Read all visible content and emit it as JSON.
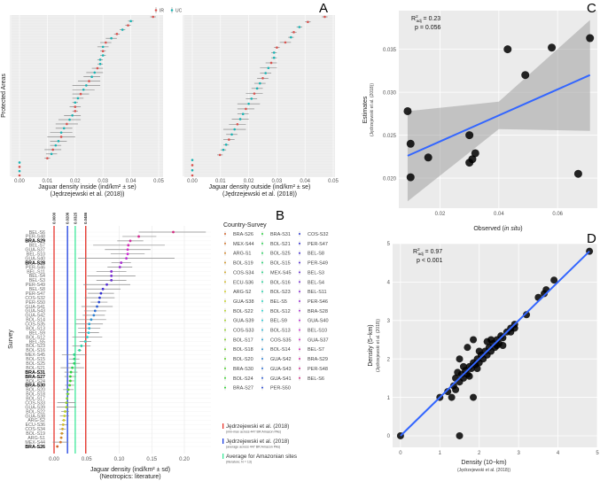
{
  "panel_labels": {
    "a": "A",
    "b": "B",
    "c": "C",
    "d": "D"
  },
  "chart_data": [
    {
      "id": "A",
      "type": "scatter",
      "ylabel": "Protected Areas",
      "legend": [
        {
          "name": "IR",
          "color": "#d9534f"
        },
        {
          "name": "UC",
          "color": "#1bb3b3"
        }
      ],
      "legend_placement": "top-center",
      "xlim": [
        0,
        0.05
      ],
      "xticks": [
        "0.00",
        "0.01",
        "0.02",
        "0.03",
        "0.04",
        "0.05"
      ],
      "panels": [
        {
          "xlabel": "Jaguar density inside (ind/km² ± se)",
          "xlabel_sub": "(Jędrzejewski et al. (2018))",
          "points": [
            [
              0,
              0,
              "IR"
            ],
            [
              0,
              0,
              "UC"
            ],
            [
              0,
              0,
              "IR"
            ],
            [
              0,
              0,
              "UC"
            ],
            [
              0.01,
              0.001,
              "IR"
            ],
            [
              0.0115,
              0.002,
              "UC"
            ],
            [
              0.012,
              0.003,
              "IR"
            ],
            [
              0.013,
              0.002,
              "UC"
            ],
            [
              0.014,
              0.003,
              "UC"
            ],
            [
              0.015,
              0.005,
              "IR"
            ],
            [
              0.015,
              0.004,
              "UC"
            ],
            [
              0.016,
              0.003,
              "UC"
            ],
            [
              0.017,
              0.004,
              "IR"
            ],
            [
              0.018,
              0.004,
              "UC"
            ],
            [
              0.019,
              0.003,
              "UC"
            ],
            [
              0.02,
              0.001,
              "IR"
            ],
            [
              0.02,
              0.002,
              "IR"
            ],
            [
              0.02,
              0.001,
              "UC"
            ],
            [
              0.021,
              0.002,
              "UC"
            ],
            [
              0.022,
              0.003,
              "IR"
            ],
            [
              0.023,
              0.004,
              "UC"
            ],
            [
              0.024,
              0.005,
              "UC"
            ],
            [
              0.025,
              0.004,
              "IR"
            ],
            [
              0.026,
              0.003,
              "UC"
            ],
            [
              0.027,
              0.003,
              "UC"
            ],
            [
              0.028,
              0.002,
              "IR"
            ],
            [
              0.029,
              0.001,
              "UC"
            ],
            [
              0.029,
              0.001,
              "UC"
            ],
            [
              0.03,
              0.001,
              "UC"
            ],
            [
              0.03,
              0.001,
              "IR"
            ],
            [
              0.03,
              0.002,
              "UC"
            ],
            [
              0.031,
              0.002,
              "IR"
            ],
            [
              0.033,
              0.002,
              "UC"
            ],
            [
              0.035,
              0.001,
              "IR"
            ],
            [
              0.037,
              0.001,
              "UC"
            ],
            [
              0.039,
              0.001,
              "IR"
            ],
            [
              0.04,
              0.001,
              "UC"
            ],
            [
              0.048,
              0.001,
              "IR"
            ]
          ]
        },
        {
          "xlabel": "Jaguar density outside (ind/km² ± se)",
          "xlabel_sub": "(Jędrzejewski et al. (2018))",
          "points": [
            [
              0,
              0,
              "IR"
            ],
            [
              0,
              0,
              "UC"
            ],
            [
              0,
              0,
              "IR"
            ],
            [
              0,
              0,
              "UC"
            ],
            [
              0.0098,
              0.001,
              "IR"
            ],
            [
              0.011,
              0.001,
              "UC"
            ],
            [
              0.012,
              0.001,
              "UC"
            ],
            [
              0.013,
              0.002,
              "IR"
            ],
            [
              0.014,
              0.002,
              "UC"
            ],
            [
              0.015,
              0.004,
              "UC"
            ],
            [
              0.016,
              0.003,
              "IR"
            ],
            [
              0.017,
              0.003,
              "UC"
            ],
            [
              0.018,
              0.002,
              "UC"
            ],
            [
              0.019,
              0.003,
              "IR"
            ],
            [
              0.02,
              0.004,
              "UC"
            ],
            [
              0.021,
              0.002,
              "UC"
            ],
            [
              0.022,
              0.003,
              "IR"
            ],
            [
              0.023,
              0.002,
              "UC"
            ],
            [
              0.024,
              0.002,
              "UC"
            ],
            [
              0.025,
              0.002,
              "IR"
            ],
            [
              0.026,
              0.002,
              "UC"
            ],
            [
              0.027,
              0.003,
              "UC"
            ],
            [
              0.028,
              0.002,
              "IR"
            ],
            [
              0.029,
              0.001,
              "UC"
            ],
            [
              0.029,
              0.001,
              "UC"
            ],
            [
              0.03,
              0.001,
              "IR"
            ],
            [
              0.033,
              0.002,
              "IR"
            ],
            [
              0.035,
              0.001,
              "UC"
            ],
            [
              0.036,
              0.001,
              "IR"
            ],
            [
              0.038,
              0.001,
              "UC"
            ],
            [
              0.041,
              0.001,
              "IR"
            ],
            [
              0.047,
              0.001,
              "IR"
            ]
          ]
        }
      ]
    },
    {
      "id": "B",
      "type": "scatter",
      "ylabel": "Survey",
      "xlabel": "Jaguar density (ind/km² ± sd)",
      "xlabel_sub": "(Neotropics: literature)",
      "xlim": [
        -0.01,
        0.235
      ],
      "xticks": [
        "0.00",
        "0.05",
        "0.10",
        "0.15",
        "0.20"
      ],
      "bold_surveys": [
        "BRA-S29",
        "BRA-S28",
        "BRA-S31",
        "BRA-S27",
        "BRA-S30",
        "BRA-S26"
      ],
      "surveys": [
        [
          "BEL-S6",
          0.183,
          0.13,
          0.233
        ],
        [
          "PER-S48",
          0.13,
          0.105,
          0.157
        ],
        [
          "BRA-S29",
          0.117,
          0.097,
          0.137
        ],
        [
          "BEL-S7",
          0.114,
          0.06,
          0.17
        ],
        [
          "GUA-S37",
          0.113,
          0.078,
          0.148
        ],
        [
          "BEL-S10",
          0.113,
          0.087,
          0.139
        ],
        [
          "GUA-S40",
          0.111,
          0.037,
          0.185
        ],
        [
          "BRA-S28",
          0.103,
          0.088,
          0.118
        ],
        [
          "PER-S46",
          0.101,
          0.082,
          0.12
        ],
        [
          "BEL-S11",
          0.088,
          0.065,
          0.111
        ],
        [
          "BEL-S4",
          0.088,
          0.051,
          0.125
        ],
        [
          "BEL-S3",
          0.088,
          0.065,
          0.111
        ],
        [
          "PER-S49",
          0.081,
          0.045,
          0.117
        ],
        [
          "BEL-S8",
          0.075,
          0.048,
          0.102
        ],
        [
          "PER-S47",
          0.072,
          0.052,
          0.092
        ],
        [
          "COS-S32",
          0.07,
          0.047,
          0.093
        ],
        [
          "PER-S50",
          0.069,
          0.056,
          0.082
        ],
        [
          "GUA-S41",
          0.066,
          0.042,
          0.09
        ],
        [
          "GUA-S43",
          0.063,
          0.046,
          0.08
        ],
        [
          "GUA-S42",
          0.061,
          0.044,
          0.078
        ],
        [
          "BOL-S14",
          0.057,
          0.034,
          0.08
        ],
        [
          "COS-S35",
          0.054,
          0.033,
          0.075
        ],
        [
          "BOL-S13",
          0.054,
          0.037,
          0.071
        ],
        [
          "BEL-S9",
          0.053,
          0.037,
          0.069
        ],
        [
          "BOL-S12",
          0.051,
          0.028,
          0.074
        ],
        [
          "BEL-S5",
          0.048,
          0.039,
          0.057
        ],
        [
          "BOL-S23",
          0.042,
          0.028,
          0.056
        ],
        [
          "BOL-S16",
          0.039,
          0.036,
          0.042
        ],
        [
          "MEX-S45",
          0.031,
          0.012,
          0.05
        ],
        [
          "BOL-S15",
          0.031,
          0.023,
          0.039
        ],
        [
          "BOL-S25",
          0.031,
          0.022,
          0.04
        ],
        [
          "BOL-S21",
          0.028,
          0.01,
          0.046
        ],
        [
          "BRA-S31",
          0.026,
          0.016,
          0.036
        ],
        [
          "BRA-S27",
          0.025,
          0.016,
          0.034
        ],
        [
          "BOL-S24",
          0.025,
          0.019,
          0.031
        ],
        [
          "BRA-S30",
          0.024,
          0.017,
          0.031
        ],
        [
          "BOL-S20",
          0.022,
          0.014,
          0.03
        ],
        [
          "BOL-S18",
          0.021,
          0.018,
          0.024
        ],
        [
          "BOL-S17",
          0.02,
          0.019,
          0.021
        ],
        [
          "COS-S33",
          0.019,
          0.005,
          0.033
        ],
        [
          "GUA-S39",
          0.019,
          0.004,
          0.034
        ],
        [
          "BOL-S22",
          0.017,
          0.011,
          0.023
        ],
        [
          "GUA-S38",
          0.016,
          0.009,
          0.023
        ],
        [
          "ARG-S2",
          0.015,
          0.012,
          0.018
        ],
        [
          "ECU-S36",
          0.014,
          0.008,
          0.02
        ],
        [
          "COS-S34",
          0.013,
          0.008,
          0.018
        ],
        [
          "BOL-S19",
          0.012,
          0.009,
          0.015
        ],
        [
          "ARG-S1",
          0.011,
          0.009,
          0.013
        ],
        [
          "MEX-S44",
          0.01,
          -0.002,
          0.022
        ],
        [
          "BRA-S26",
          0.005,
          0.004,
          0.006
        ]
      ],
      "vlines": [
        {
          "value": 0.0,
          "label": "0.0000",
          "color": "#e8342c"
        },
        {
          "value": 0.0206,
          "label": "0.0206",
          "color": "#1a3ee0"
        },
        {
          "value": 0.0325,
          "label": "0.0325",
          "color": "#3ee89a"
        },
        {
          "value": 0.0486,
          "label": "0.0486",
          "color": "#e8342c"
        }
      ],
      "legend_title": "Country-Survey",
      "legend_columns": [
        [
          "BRA-S26",
          "MEX-S44",
          "ARG-S1",
          "BOL-S19",
          "COS-S34",
          "ECU-S36",
          "ARG-S2",
          "GUA-S38",
          "BOL-S22",
          "GUA-S39",
          "COS-S33",
          "BOL-S17",
          "BOL-S18",
          "BOL-S20",
          "BRA-S30",
          "BOL-S24",
          "BRA-S27"
        ],
        [
          "BRA-S31",
          "BOL-S21",
          "BOL-S25",
          "BOL-S15",
          "MEX-S45",
          "BOL-S16",
          "BOL-S23",
          "BEL-S5",
          "BOL-S12",
          "BEL-S9",
          "BOL-S13",
          "COS-S35",
          "BOL-S14",
          "GUA-S42",
          "GUA-S43",
          "GUA-S41",
          "PER-S50"
        ],
        [
          "COS-S32",
          "PER-S47",
          "BEL-S8",
          "PER-S49",
          "BEL-S3",
          "BEL-S4",
          "BEL-S11",
          "PER-S46",
          "BRA-S28",
          "GUA-S40",
          "BEL-S10",
          "GUA-S37",
          "BEL-S7",
          "BRA-S29",
          "PER-S48",
          "BEL-S6"
        ]
      ],
      "line_legend": [
        {
          "label": "Jędrzejewski et al. (2018)",
          "sub": "(min-max across 447 BR Amazon PAs)",
          "color": "#e8342c"
        },
        {
          "label": "Jędrzejewski et al. (2018)",
          "sub": "(average across 447 BR Amazon PAs)",
          "color": "#1a3ee0"
        },
        {
          "label": "Average for Amazonian sites",
          "sub": "(literature; N = 13)",
          "color": "#3ee89a"
        }
      ]
    },
    {
      "id": "C",
      "type": "scatter",
      "xlabel": "Observed (in situ)",
      "xlabel_plain": "Observed (",
      "xlabel_italic": "in situ",
      "xlabel_end": ")",
      "ylabel": "Estimates",
      "ylabel_sub": "(Jędrzejewski et al. (2018))",
      "xlim": [
        0.006,
        0.0735
      ],
      "ylim": [
        0.0165,
        0.0395
      ],
      "xticks": [
        0.02,
        0.04,
        0.06
      ],
      "xtick_labels": [
        "0.02",
        "0.04",
        "0.06"
      ],
      "yticks": [
        0.02,
        0.025,
        0.03,
        0.035
      ],
      "ytick_labels": [
        "0.020",
        "0.025",
        "0.030",
        "0.035"
      ],
      "annotation": {
        "r2": "R²adj = 0.23",
        "r2_prefix": "R",
        "r2_sup": "2",
        "r2_sub": "adj",
        "r2_val": " = 0.23",
        "p": "p = 0.056"
      },
      "points": [
        [
          0.009,
          0.0278
        ],
        [
          0.01,
          0.024
        ],
        [
          0.01,
          0.0201
        ],
        [
          0.016,
          0.0224
        ],
        [
          0.03,
          0.0218
        ],
        [
          0.03,
          0.025
        ],
        [
          0.031,
          0.0222
        ],
        [
          0.032,
          0.0229
        ],
        [
          0.043,
          0.035
        ],
        [
          0.049,
          0.032
        ],
        [
          0.058,
          0.0352
        ],
        [
          0.067,
          0.0205
        ],
        [
          0.071,
          0.0363
        ]
      ],
      "fit": {
        "x": [
          0.009,
          0.071
        ],
        "y": [
          0.0226,
          0.032
        ],
        "ci_low": [
          0.0173,
          0.0255
        ],
        "ci_high": [
          0.0278,
          0.0384
        ],
        "color": "#3366ff"
      }
    },
    {
      "id": "D",
      "type": "scatter",
      "xlabel": "Density (10−km)",
      "xlabel_sub": "(Jędrzejewski et al. (2018))",
      "ylabel": "Density (5−km)",
      "ylabel_sub": "(Jędrzejewski et al. (2018))",
      "xlim": [
        -0.2,
        5
      ],
      "ylim": [
        -0.3,
        5
      ],
      "xticks": [
        "0",
        "1",
        "2",
        "3",
        "4",
        "5"
      ],
      "yticks": [
        "0",
        "1",
        "2",
        "3",
        "4",
        "5"
      ],
      "annotation": {
        "r2_prefix": "R",
        "r2_sup": "2",
        "r2_sub": "adj",
        "r2_val": " = 0.97",
        "p": "p < 0.001"
      },
      "points": [
        [
          0,
          0
        ],
        [
          1.5,
          0
        ],
        [
          1,
          1
        ],
        [
          1.85,
          1
        ],
        [
          1.3,
          1
        ],
        [
          1.2,
          1.15
        ],
        [
          1.35,
          1.3
        ],
        [
          1.4,
          1.5
        ],
        [
          1.5,
          1.4
        ],
        [
          1.55,
          1.6
        ],
        [
          1.6,
          1.5
        ],
        [
          1.65,
          1.7
        ],
        [
          1.7,
          1.6
        ],
        [
          1.75,
          1.8
        ],
        [
          1.8,
          1.75
        ],
        [
          1.85,
          1.9
        ],
        [
          1.9,
          1.85
        ],
        [
          1.95,
          2
        ],
        [
          2,
          1.9
        ],
        [
          2.05,
          2.1
        ],
        [
          2.1,
          2
        ],
        [
          2.15,
          2.2
        ],
        [
          2.2,
          2.1
        ],
        [
          2.25,
          2.3
        ],
        [
          2.3,
          2.2
        ],
        [
          2.35,
          2.4
        ],
        [
          2.4,
          2.3
        ],
        [
          2.45,
          2.5
        ],
        [
          2.5,
          2.4
        ],
        [
          2.55,
          2.6
        ],
        [
          2.6,
          2.55
        ],
        [
          2.7,
          2.7
        ],
        [
          2.8,
          2.8
        ],
        [
          2.9,
          2.9
        ],
        [
          3.2,
          3.15
        ],
        [
          3.5,
          3.6
        ],
        [
          3.65,
          3.7
        ],
        [
          3.7,
          3.8
        ],
        [
          3.9,
          4.05
        ],
        [
          4.8,
          4.8
        ],
        [
          1.7,
          2.3
        ],
        [
          1.85,
          2.5
        ],
        [
          1.5,
          2
        ],
        [
          1.4,
          1.2
        ],
        [
          2.2,
          2.45
        ],
        [
          2.6,
          2.35
        ],
        [
          2.0,
          2.2
        ],
        [
          1.6,
          1.8
        ],
        [
          1.45,
          1.65
        ],
        [
          2.3,
          2.5
        ],
        [
          2.45,
          2.35
        ],
        [
          1.75,
          1.55
        ],
        [
          2.8,
          2.7
        ],
        [
          2.9,
          2.8
        ],
        [
          1.95,
          1.75
        ]
      ],
      "fit": {
        "x": [
          0,
          4.8
        ],
        "y": [
          0,
          4.8
        ],
        "color": "#3366ff"
      }
    }
  ]
}
